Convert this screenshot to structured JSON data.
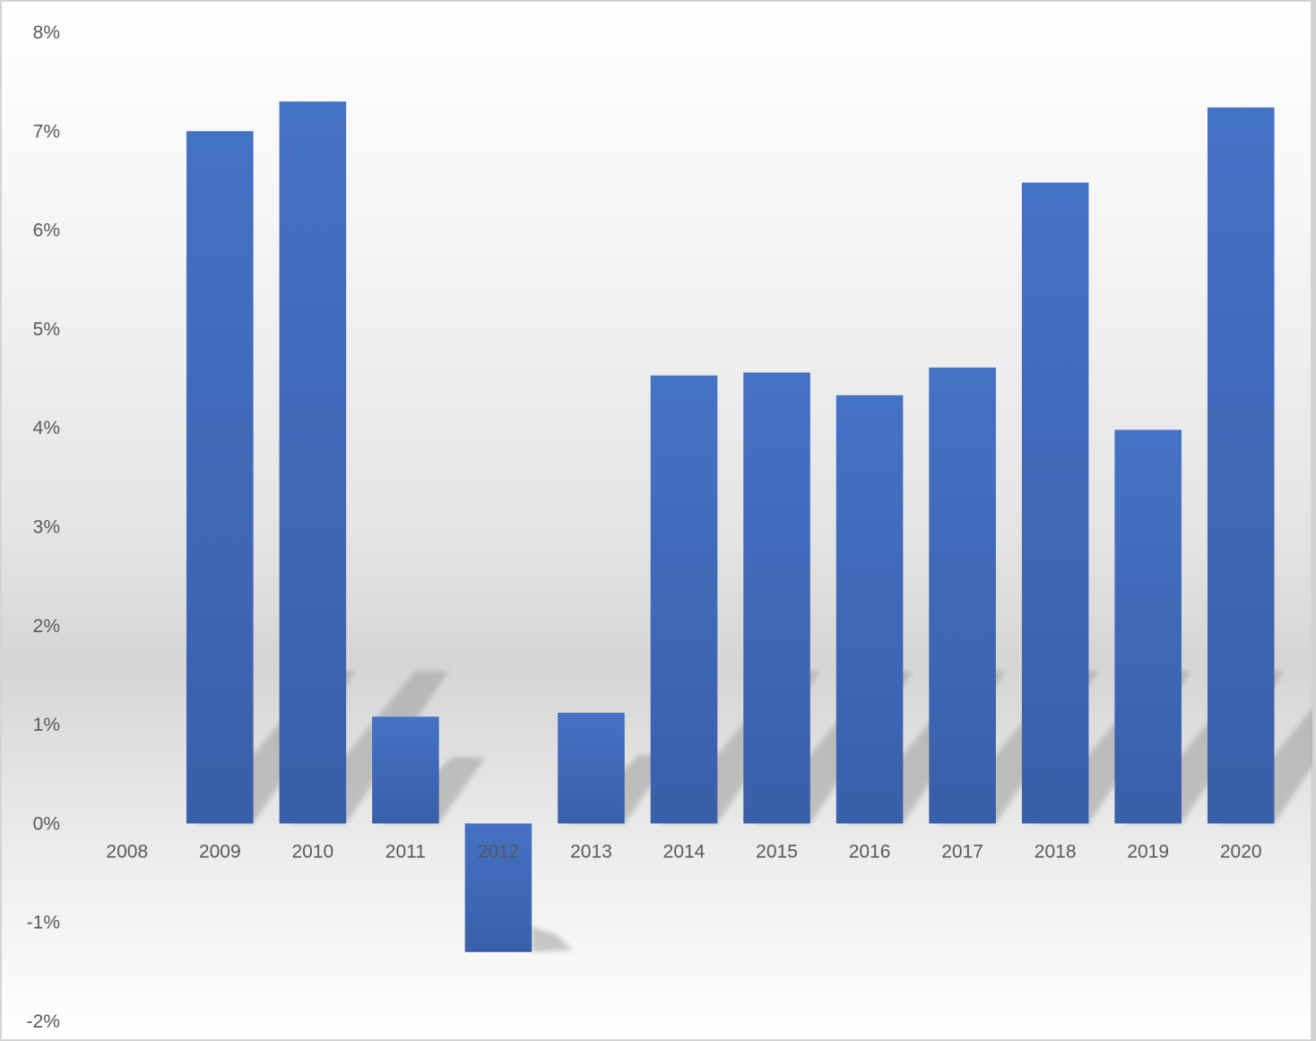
{
  "chart_data": {
    "type": "bar",
    "title": "",
    "xlabel": "",
    "ylabel": "",
    "categories": [
      "2008",
      "2009",
      "2010",
      "2011",
      "2012",
      "2013",
      "2014",
      "2015",
      "2016",
      "2017",
      "2018",
      "2019",
      "2020"
    ],
    "values": [
      0.0,
      7.0,
      7.3,
      1.08,
      -1.3,
      1.12,
      4.53,
      4.56,
      4.33,
      4.61,
      6.48,
      3.98,
      7.24
    ],
    "ylim": [
      -2,
      8
    ],
    "yticks": [
      "-2%",
      "-1%",
      "0%",
      "1%",
      "2%",
      "3%",
      "4%",
      "5%",
      "6%",
      "7%",
      "8%"
    ],
    "y_unit": "%",
    "grid": false,
    "legend": "none",
    "bar_color": "#4472C4",
    "bar_color_dark": "#3A5FA9",
    "shadow_color": "#9E9E9E"
  }
}
